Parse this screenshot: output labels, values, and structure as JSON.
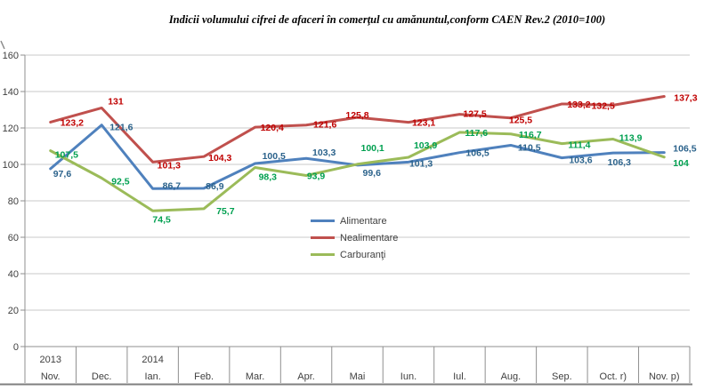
{
  "chart_data": {
    "type": "line",
    "title": "Indicii volumului cifrei de afaceri în comerţul cu amănuntul,conform CAEN Rev.2 (2010=100)",
    "categories": [
      "Nov.",
      "Dec.",
      "Ian.",
      "Feb.",
      "Mar.",
      "Apr.",
      "Mai",
      "Iun.",
      "Iul.",
      "Aug.",
      "Sep.",
      "Oct. r)",
      "Nov. p)"
    ],
    "year_markers": [
      {
        "label": "2013",
        "category_index": 0
      },
      {
        "label": "2014",
        "category_index": 2
      }
    ],
    "ylim": [
      0,
      160
    ],
    "ytick_step": 20,
    "grid": true,
    "legend_position": "center",
    "colors": {
      "grid": "#c9c9c9",
      "axis": "#8f8f8f",
      "bottom_border": "#7f7f7f",
      "axis_text": "#3f3f3f"
    },
    "series": [
      {
        "name": "Alimentare",
        "line_color": "#4F81BD",
        "label_color": "#2B628B",
        "values": [
          97.6,
          121.6,
          86.7,
          86.9,
          100.5,
          103.3,
          99.6,
          101.3,
          106.5,
          110.5,
          103.6,
          106.3,
          106.5
        ],
        "labels": [
          "97,6",
          "121,6",
          "86,7",
          "86,9",
          "100,5",
          "103,3",
          "99,6",
          "101,3",
          "106,5",
          "110,5",
          "103,6",
          "106,3",
          "106,5"
        ]
      },
      {
        "name": "Nealimentare",
        "line_color": "#C0504D",
        "label_color": "#C00000",
        "values": [
          123.2,
          131,
          101.3,
          104.3,
          120.4,
          121.6,
          125.8,
          123.1,
          127.5,
          125.5,
          133.2,
          132.5,
          137.3
        ],
        "labels": [
          "123,2",
          "131",
          "101,3",
          "104,3",
          "120,4",
          "121,6",
          "125,8",
          "123,1",
          "127,5",
          "125,5",
          "133,2",
          "132,5",
          "137,3"
        ]
      },
      {
        "name": "Carburanţi",
        "line_color": "#9BBB59",
        "label_color": "#00A050",
        "values": [
          107.5,
          92.5,
          74.5,
          75.7,
          98.3,
          93.9,
          100.1,
          103.9,
          117.6,
          116.7,
          111.4,
          113.9,
          104
        ],
        "labels": [
          "107,5",
          "92,5",
          "74,5",
          "75,7",
          "98,3",
          "93,9",
          "100,1",
          "103,9",
          "117,6",
          "116,7",
          "111,4",
          "113,9",
          "104"
        ]
      }
    ]
  }
}
